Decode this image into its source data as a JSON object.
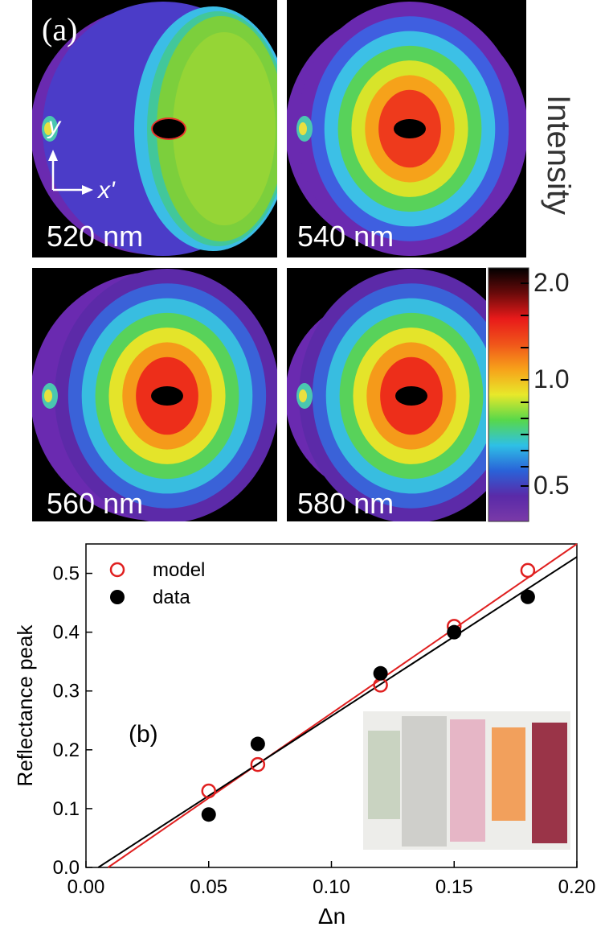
{
  "panel_a": {
    "label": "(a)",
    "axis_y": "y",
    "axis_x": "x'",
    "maps": [
      {
        "wavelength": "520 nm",
        "ring_colors": [
          "#6a2ab0",
          "#5a3fd0",
          "#2f6fe0",
          "#40c6e8",
          "#45c98a",
          "#7ccf3c",
          "#a5d62f"
        ],
        "fill": "outer-green"
      },
      {
        "wavelength": "540 nm",
        "ring_colors": [
          "#6a2ab0",
          "#3f5fe0",
          "#3cc0e6",
          "#58d25a",
          "#d8e42a",
          "#f6a21a",
          "#ee3a1c"
        ],
        "fill": "red-core"
      },
      {
        "wavelength": "560 nm",
        "ring_colors": [
          "#5c2aa8",
          "#3a62d8",
          "#38bde0",
          "#58d25a",
          "#e4e42a",
          "#f59a1a",
          "#ed2e1a"
        ],
        "fill": "red-core"
      },
      {
        "wavelength": "580 nm",
        "ring_colors": [
          "#5c2aa8",
          "#3a62d8",
          "#38bde0",
          "#58d25a",
          "#e4e42a",
          "#f59a1a",
          "#ed2e1a"
        ],
        "fill": "red-core"
      }
    ],
    "colorbar": {
      "title": "Intensity",
      "ticks": [
        "2.0",
        "1.0",
        "0.5"
      ],
      "stops": [
        "#000000",
        "#6a0a0a",
        "#e81a1a",
        "#f0551a",
        "#f7a21a",
        "#e8e82a",
        "#58d84a",
        "#2ec0e6",
        "#2a62d8",
        "#5a2aa8",
        "#7a3aa8"
      ]
    }
  },
  "chart_data": {
    "type": "scatter",
    "panel_label": "(b)",
    "xlabel": "Δn",
    "ylabel": "Reflectance peak",
    "xlim": [
      0.0,
      0.2
    ],
    "ylim": [
      0.0,
      0.55
    ],
    "x_ticks": [
      "0.00",
      "0.05",
      "0.10",
      "0.15",
      "0.20"
    ],
    "y_ticks": [
      "0.0",
      "0.1",
      "0.2",
      "0.3",
      "0.4",
      "0.5"
    ],
    "legend_position": "top-left",
    "series": [
      {
        "name": "model",
        "marker": "open-circle",
        "color": "#e02020",
        "x": [
          0.05,
          0.07,
          0.12,
          0.15,
          0.18
        ],
        "y": [
          0.13,
          0.175,
          0.31,
          0.41,
          0.505
        ],
        "fit": {
          "x": [
            0.009,
            0.2
          ],
          "y": [
            0.0,
            0.55
          ],
          "color": "#e02020"
        }
      },
      {
        "name": "data",
        "marker": "filled-circle",
        "color": "#000000",
        "x": [
          0.05,
          0.07,
          0.12,
          0.15,
          0.18
        ],
        "y": [
          0.09,
          0.21,
          0.33,
          0.4,
          0.46
        ],
        "fit": {
          "x": [
            0.005,
            0.2
          ],
          "y": [
            0.0,
            0.528
          ],
          "color": "#000000"
        }
      }
    ],
    "inset_swatches": [
      "#c9d3c1",
      "#cfcfcb",
      "#e6b6c6",
      "#f2a05c",
      "#9a3448"
    ]
  }
}
